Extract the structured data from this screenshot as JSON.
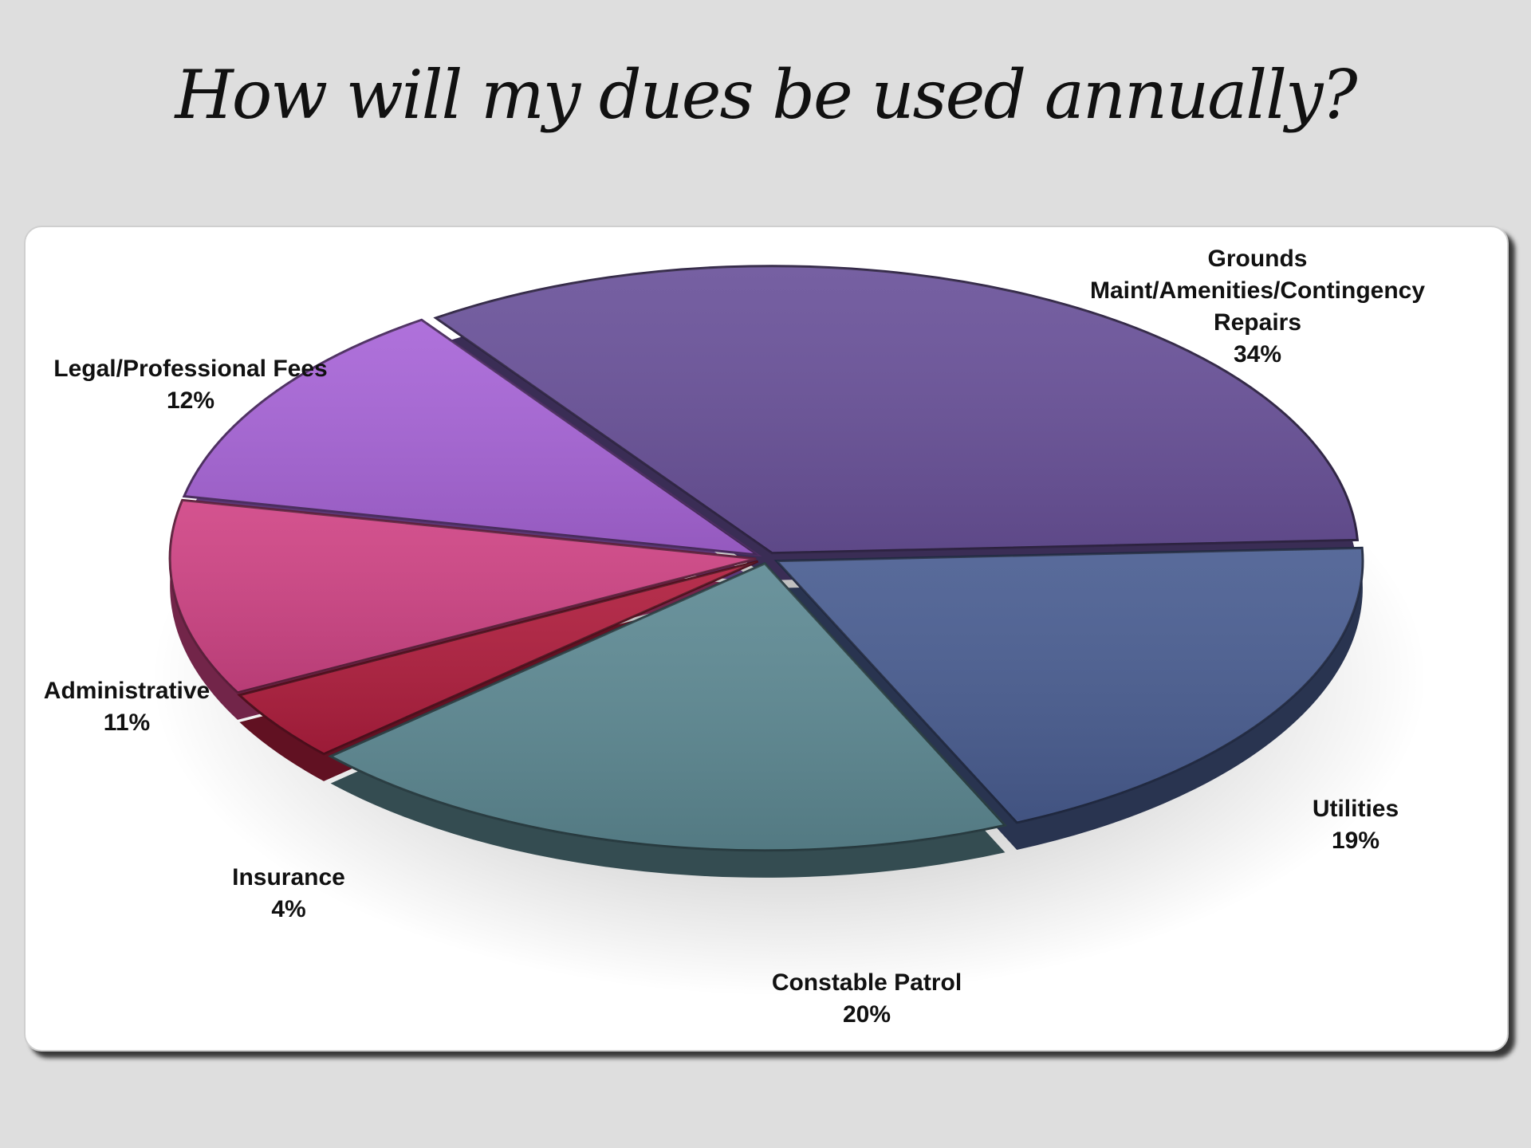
{
  "chart_data": {
    "type": "pie",
    "title": "How will my dues be used annually?",
    "style": "3d-exploded",
    "slices": [
      {
        "label": "Grounds Maint/Amenities/Contingency Repairs",
        "lines": [
          "Grounds",
          "Maint/Amenities/Contingency",
          "Repairs"
        ],
        "value": 34,
        "pct_label": "34%",
        "color": "#6a529a"
      },
      {
        "label": "Utilities",
        "lines": [
          "Utilities"
        ],
        "value": 19,
        "pct_label": "19%",
        "color": "#4a5e92"
      },
      {
        "label": "Constable Patrol",
        "lines": [
          "Constable Patrol"
        ],
        "value": 20,
        "pct_label": "20%",
        "color": "#5e8a94"
      },
      {
        "label": "Insurance",
        "lines": [
          "Insurance"
        ],
        "value": 4,
        "pct_label": "4%",
        "color": "#b01e3e"
      },
      {
        "label": "Administrative",
        "lines": [
          "Administrative"
        ],
        "value": 11,
        "pct_label": "11%",
        "color": "#d04485"
      },
      {
        "label": "Legal/Professional Fees",
        "lines": [
          "Legal/Professional Fees"
        ],
        "value": 12,
        "pct_label": "12%",
        "color": "#a865d8"
      }
    ]
  }
}
